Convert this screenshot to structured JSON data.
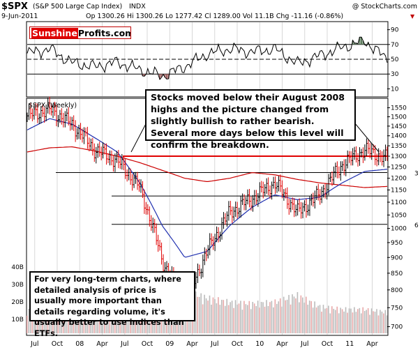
{
  "header": {
    "symbol": "$SPX",
    "description": "(S&P 500 Large Cap Index)",
    "exchange": "INDX",
    "copyright": "@ StockCharts.com",
    "date": "9-Jun-2011",
    "quote": "Op 1300.26  Hi 1300.26  Lo 1277.42  Cl 1289.00  Vol 11.1B  Chg -11.16 (-0.86%)",
    "change_arrow": "▼"
  },
  "logo": {
    "red": "Sunshine",
    "black": "Profits.com/FREE"
  },
  "panel_label": "$SPX (Weekly)",
  "notes": {
    "top": "Stocks moved below their August 2008 highs and the picture changed from slightly bullish to rather bearish. Several more days below this level will confirm the breakdown.",
    "bottom": "For very long-term charts, where detailed analysis of price is usually more important than details regarding volume, it's usually better to use indices than ETFs."
  },
  "colors": {
    "price_up": "#000000",
    "price_down": "#e00000",
    "ma_red": "#cc0000",
    "ma_blue": "#2030b0",
    "support": "#e00000",
    "volume": "#bbbbbb",
    "rsi": "#000000",
    "rsi_fill_high": "#5a7a5a",
    "rsi_fill_low": "#a06060"
  },
  "chart_data": [
    {
      "type": "line",
      "name": "RSI",
      "ylim": [
        0,
        100
      ],
      "y_ticks": [
        "10",
        "30",
        "50",
        "70",
        "90"
      ],
      "reference_lines": [
        30,
        50,
        70
      ],
      "x": [
        "2007-06",
        "2007-09",
        "2007-12",
        "2008-03",
        "2008-06",
        "2008-09",
        "2008-12",
        "2009-03",
        "2009-06",
        "2009-09",
        "2009-12",
        "2010-03",
        "2010-06",
        "2010-09",
        "2010-12",
        "2011-03",
        "2011-06"
      ],
      "values": [
        58,
        64,
        45,
        40,
        46,
        36,
        27,
        40,
        57,
        64,
        60,
        64,
        44,
        55,
        66,
        75,
        50
      ]
    },
    {
      "type": "candlestick",
      "name": "$SPX (Weekly)",
      "ylim": [
        680,
        1600
      ],
      "y_ticks": [
        "700",
        "750",
        "800",
        "850",
        "900",
        "950",
        "1000",
        "1050",
        "1100",
        "1150",
        "1200",
        "1250",
        "1300",
        "1350",
        "1400",
        "1450",
        "1500",
        "1550"
      ],
      "x_ticks": [
        "Jul",
        "Oct",
        "08",
        "Apr",
        "Jul",
        "Oct",
        "09",
        "Apr",
        "Jul",
        "Oct",
        "10",
        "Apr",
        "Jul",
        "Oct",
        "11",
        "Apr"
      ],
      "x": [
        "2007-06",
        "2007-09",
        "2007-12",
        "2008-03",
        "2008-06",
        "2008-09",
        "2008-12",
        "2009-03",
        "2009-06",
        "2009-09",
        "2009-12",
        "2010-03",
        "2010-06",
        "2010-09",
        "2010-12",
        "2011-03",
        "2011-06"
      ],
      "close": [
        1505,
        1540,
        1460,
        1330,
        1280,
        1160,
        890,
        760,
        920,
        1060,
        1115,
        1180,
        1060,
        1130,
        1260,
        1330,
        1289
      ],
      "ma_red": [
        1320,
        1340,
        1345,
        1325,
        1300,
        1270,
        1235,
        1200,
        1185,
        1200,
        1225,
        1215,
        1195,
        1180,
        1170,
        1160,
        1165
      ],
      "ma_blue": [
        1430,
        1490,
        1460,
        1390,
        1320,
        1180,
        1010,
        900,
        920,
        1010,
        1080,
        1130,
        1110,
        1120,
        1180,
        1230,
        1240
      ],
      "support_line": 1300,
      "horizontal_lines": [
        1225,
        1125,
        1015
      ],
      "right_labels": [
        "3",
        "6"
      ]
    },
    {
      "type": "bar",
      "name": "Volume",
      "y_ticks": [
        "10B",
        "20B",
        "30B",
        "40B"
      ],
      "x": [
        "2007-06",
        "2007-09",
        "2007-12",
        "2008-03",
        "2008-06",
        "2008-09",
        "2008-12",
        "2009-03",
        "2009-06",
        "2009-09",
        "2009-12",
        "2010-03",
        "2010-06",
        "2010-09",
        "2010-12",
        "2011-03",
        "2011-06"
      ],
      "values": [
        16,
        18,
        20,
        21,
        22,
        34,
        32,
        30,
        25,
        22,
        21,
        22,
        27,
        19,
        17,
        17,
        15
      ]
    }
  ]
}
